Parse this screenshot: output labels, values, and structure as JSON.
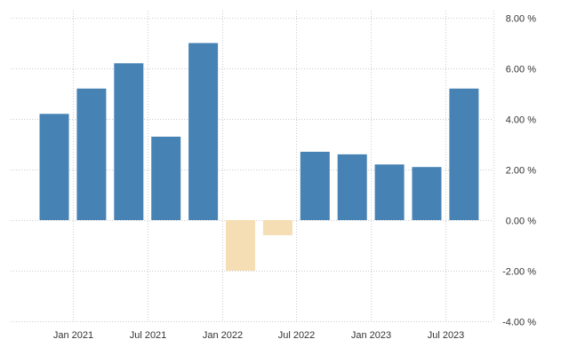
{
  "chart_data": {
    "type": "bar",
    "title": "",
    "xlabel": "",
    "ylabel": "",
    "categories": [
      "2020-Q4",
      "2021-Q1",
      "2021-Q2",
      "2021-Q3",
      "2021-Q4",
      "2022-Q1",
      "2022-Q2",
      "2022-Q3",
      "2022-Q4",
      "2023-Q1",
      "2023-Q2",
      "2023-Q3"
    ],
    "values": [
      4.2,
      5.2,
      6.2,
      3.3,
      7.0,
      -2.0,
      -0.6,
      2.7,
      2.6,
      2.2,
      2.1,
      5.2
    ],
    "ylim": [
      -4,
      8
    ],
    "y_ticks": [
      8,
      6,
      4,
      2,
      0,
      -2,
      -4
    ],
    "y_tick_labels": [
      "8.00 %",
      "6.00 %",
      "4.00 %",
      "2.00 %",
      "0.00 %",
      "-2.00 %",
      "-4.00 %"
    ],
    "x_tick_labels": [
      "Jan 2021",
      "Jul 2021",
      "Jan 2022",
      "Jul 2022",
      "Jan 2023",
      "Jul 2023"
    ],
    "y_axis_position": "right",
    "grid": true,
    "legend": false,
    "colors": {
      "positive": "#4682b4",
      "negative": "#f5deb3",
      "grid": "#cccccc"
    }
  }
}
